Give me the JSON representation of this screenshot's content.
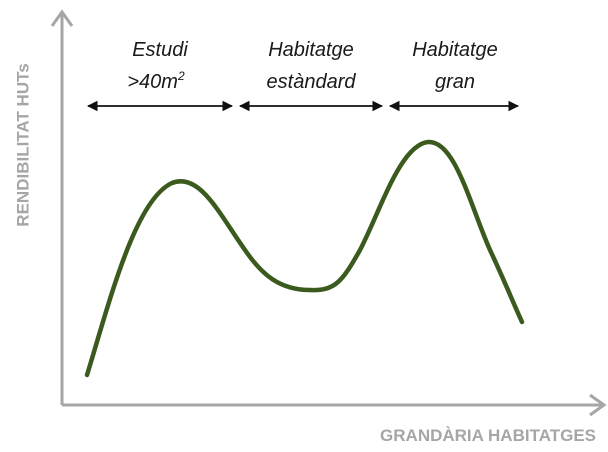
{
  "axes": {
    "y_label": "RENDIBILITAT HUTs",
    "x_label": "GRANDÀRIA HABITATGES"
  },
  "regions": [
    {
      "line1": "Estudi",
      "line2": ">40m",
      "superscript": "2"
    },
    {
      "line1": "Habitatge",
      "line2": "estàndard"
    },
    {
      "line1": "Habitatge",
      "line2": "gran"
    }
  ]
}
